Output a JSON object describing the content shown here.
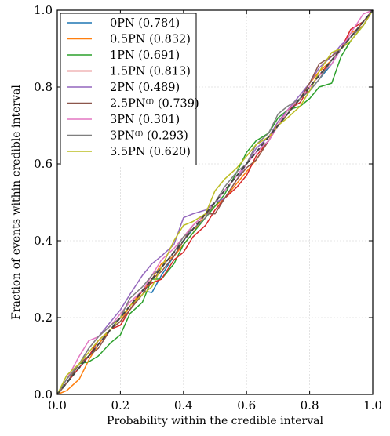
{
  "chart_data": {
    "type": "line",
    "xlabel": "Probability within the credible interval",
    "ylabel": "Fraction of events within credible interval",
    "xlim": [
      0.0,
      1.0
    ],
    "ylim": [
      0.0,
      1.0
    ],
    "xticks": [
      "0.0",
      "0.2",
      "0.4",
      "0.6",
      "0.8",
      "1.0"
    ],
    "yticks": [
      "0.0",
      "0.2",
      "0.4",
      "0.6",
      "0.8",
      "1.0"
    ],
    "grid": true,
    "legend_position": "top-left",
    "reference_line": {
      "style": "dashed",
      "color": "#444444",
      "points": [
        [
          0,
          0
        ],
        [
          1,
          1
        ]
      ]
    },
    "series": [
      {
        "name": "0PN (0.784)",
        "color": "#1f77b4",
        "x": [
          0,
          0.03,
          0.07,
          0.1,
          0.13,
          0.17,
          0.2,
          0.23,
          0.27,
          0.3,
          0.33,
          0.37,
          0.4,
          0.43,
          0.47,
          0.5,
          0.53,
          0.57,
          0.6,
          0.63,
          0.67,
          0.7,
          0.73,
          0.77,
          0.8,
          0.83,
          0.87,
          0.9,
          0.93,
          0.97,
          1.0
        ],
        "y": [
          0,
          0.03,
          0.07,
          0.1,
          0.13,
          0.17,
          0.2,
          0.23,
          0.27,
          0.265,
          0.31,
          0.36,
          0.4,
          0.43,
          0.46,
          0.5,
          0.53,
          0.57,
          0.6,
          0.63,
          0.66,
          0.7,
          0.74,
          0.77,
          0.79,
          0.82,
          0.86,
          0.9,
          0.93,
          0.97,
          1.0
        ]
      },
      {
        "name": "0.5PN (0.832)",
        "color": "#ff7f0e",
        "x": [
          0,
          0.03,
          0.07,
          0.1,
          0.13,
          0.17,
          0.2,
          0.23,
          0.27,
          0.3,
          0.33,
          0.37,
          0.4,
          0.43,
          0.47,
          0.5,
          0.53,
          0.57,
          0.6,
          0.63,
          0.67,
          0.7,
          0.73,
          0.77,
          0.8,
          0.83,
          0.87,
          0.9,
          0.93,
          0.97,
          1.0
        ],
        "y": [
          0,
          0.01,
          0.04,
          0.09,
          0.13,
          0.17,
          0.19,
          0.23,
          0.27,
          0.3,
          0.34,
          0.36,
          0.39,
          0.42,
          0.47,
          0.49,
          0.51,
          0.55,
          0.58,
          0.61,
          0.66,
          0.71,
          0.74,
          0.77,
          0.81,
          0.84,
          0.87,
          0.9,
          0.94,
          0.96,
          1.0
        ]
      },
      {
        "name": "1PN (0.691)",
        "color": "#2ca02c",
        "x": [
          0,
          0.03,
          0.07,
          0.1,
          0.13,
          0.17,
          0.2,
          0.23,
          0.27,
          0.3,
          0.33,
          0.37,
          0.4,
          0.43,
          0.47,
          0.5,
          0.53,
          0.57,
          0.6,
          0.63,
          0.67,
          0.7,
          0.73,
          0.77,
          0.8,
          0.83,
          0.87,
          0.9,
          0.93,
          0.97,
          1.0
        ],
        "y": [
          0,
          0.03,
          0.08,
          0.085,
          0.1,
          0.135,
          0.155,
          0.21,
          0.24,
          0.3,
          0.3,
          0.34,
          0.39,
          0.42,
          0.46,
          0.49,
          0.52,
          0.58,
          0.63,
          0.66,
          0.68,
          0.72,
          0.74,
          0.75,
          0.77,
          0.8,
          0.81,
          0.88,
          0.92,
          0.96,
          1.0
        ]
      },
      {
        "name": "1.5PN (0.813)",
        "color": "#d62728",
        "x": [
          0,
          0.03,
          0.07,
          0.1,
          0.13,
          0.17,
          0.2,
          0.23,
          0.27,
          0.3,
          0.33,
          0.37,
          0.4,
          0.43,
          0.47,
          0.5,
          0.53,
          0.57,
          0.6,
          0.63,
          0.67,
          0.7,
          0.73,
          0.77,
          0.8,
          0.83,
          0.87,
          0.9,
          0.93,
          0.97,
          1.0
        ],
        "y": [
          0,
          0.03,
          0.07,
          0.1,
          0.14,
          0.17,
          0.18,
          0.22,
          0.27,
          0.29,
          0.3,
          0.35,
          0.37,
          0.41,
          0.44,
          0.48,
          0.51,
          0.54,
          0.57,
          0.62,
          0.66,
          0.7,
          0.74,
          0.76,
          0.8,
          0.83,
          0.87,
          0.9,
          0.95,
          0.97,
          1.0
        ]
      },
      {
        "name": "2PN (0.489)",
        "color": "#9467bd",
        "x": [
          0,
          0.03,
          0.07,
          0.1,
          0.13,
          0.17,
          0.2,
          0.23,
          0.27,
          0.3,
          0.33,
          0.37,
          0.4,
          0.43,
          0.47,
          0.5,
          0.53,
          0.57,
          0.6,
          0.63,
          0.67,
          0.7,
          0.73,
          0.77,
          0.8,
          0.83,
          0.87,
          0.9,
          0.93,
          0.97,
          1.0
        ],
        "y": [
          0,
          0.04,
          0.08,
          0.12,
          0.15,
          0.19,
          0.22,
          0.26,
          0.31,
          0.34,
          0.36,
          0.39,
          0.46,
          0.47,
          0.48,
          0.5,
          0.51,
          0.56,
          0.6,
          0.64,
          0.67,
          0.71,
          0.74,
          0.78,
          0.81,
          0.85,
          0.88,
          0.91,
          0.93,
          0.97,
          1.0
        ]
      },
      {
        "name": "2.5PN⁽ᴵ⁾ (0.739)",
        "color": "#8c564b",
        "x": [
          0,
          0.03,
          0.07,
          0.1,
          0.13,
          0.17,
          0.2,
          0.23,
          0.27,
          0.3,
          0.33,
          0.37,
          0.4,
          0.43,
          0.47,
          0.5,
          0.53,
          0.57,
          0.6,
          0.63,
          0.67,
          0.7,
          0.73,
          0.77,
          0.8,
          0.83,
          0.87,
          0.9,
          0.93,
          0.97,
          1.0
        ],
        "y": [
          0,
          0.03,
          0.08,
          0.1,
          0.12,
          0.17,
          0.19,
          0.22,
          0.26,
          0.3,
          0.32,
          0.36,
          0.4,
          0.44,
          0.47,
          0.47,
          0.51,
          0.56,
          0.59,
          0.61,
          0.66,
          0.7,
          0.73,
          0.77,
          0.81,
          0.86,
          0.88,
          0.9,
          0.93,
          0.97,
          1.0
        ]
      },
      {
        "name": "3PN (0.301)",
        "color": "#e377c2",
        "x": [
          0,
          0.03,
          0.07,
          0.1,
          0.13,
          0.17,
          0.2,
          0.23,
          0.27,
          0.3,
          0.33,
          0.37,
          0.4,
          0.43,
          0.47,
          0.5,
          0.53,
          0.57,
          0.6,
          0.63,
          0.67,
          0.7,
          0.73,
          0.77,
          0.8,
          0.83,
          0.87,
          0.9,
          0.93,
          0.97,
          1.0
        ],
        "y": [
          0,
          0.04,
          0.1,
          0.14,
          0.15,
          0.18,
          0.21,
          0.24,
          0.27,
          0.31,
          0.35,
          0.38,
          0.41,
          0.44,
          0.47,
          0.5,
          0.53,
          0.57,
          0.6,
          0.63,
          0.66,
          0.7,
          0.74,
          0.77,
          0.8,
          0.83,
          0.86,
          0.9,
          0.94,
          0.99,
          1.0
        ]
      },
      {
        "name": "3PN⁽ᴵ⁾ (0.293)",
        "color": "#7f7f7f",
        "x": [
          0,
          0.03,
          0.07,
          0.1,
          0.13,
          0.17,
          0.2,
          0.23,
          0.27,
          0.3,
          0.33,
          0.37,
          0.4,
          0.43,
          0.47,
          0.5,
          0.53,
          0.57,
          0.6,
          0.63,
          0.67,
          0.7,
          0.73,
          0.77,
          0.8,
          0.83,
          0.87,
          0.9,
          0.93,
          0.97,
          1.0
        ],
        "y": [
          0,
          0.04,
          0.08,
          0.12,
          0.15,
          0.18,
          0.2,
          0.25,
          0.28,
          0.31,
          0.33,
          0.37,
          0.41,
          0.43,
          0.46,
          0.5,
          0.54,
          0.58,
          0.6,
          0.65,
          0.68,
          0.73,
          0.75,
          0.77,
          0.79,
          0.82,
          0.87,
          0.9,
          0.93,
          0.96,
          1.0
        ]
      },
      {
        "name": "3.5PN (0.620)",
        "color": "#bcbd22",
        "x": [
          0,
          0.03,
          0.07,
          0.1,
          0.13,
          0.17,
          0.2,
          0.23,
          0.27,
          0.3,
          0.33,
          0.37,
          0.4,
          0.43,
          0.47,
          0.5,
          0.53,
          0.57,
          0.6,
          0.63,
          0.67,
          0.7,
          0.73,
          0.77,
          0.8,
          0.83,
          0.87,
          0.9,
          0.93,
          0.97,
          1.0
        ],
        "y": [
          0,
          0.05,
          0.08,
          0.11,
          0.14,
          0.17,
          0.2,
          0.23,
          0.26,
          0.28,
          0.33,
          0.4,
          0.44,
          0.45,
          0.47,
          0.53,
          0.56,
          0.59,
          0.62,
          0.65,
          0.67,
          0.7,
          0.72,
          0.75,
          0.79,
          0.84,
          0.89,
          0.9,
          0.92,
          0.96,
          1.0
        ]
      }
    ]
  }
}
